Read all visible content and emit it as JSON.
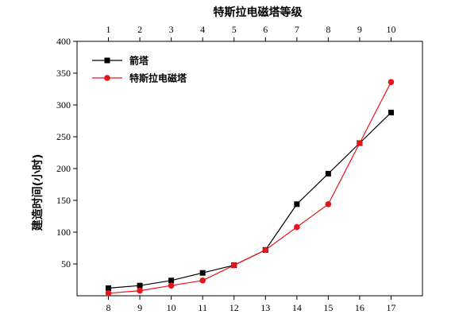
{
  "chart_data": {
    "type": "line",
    "title": "",
    "x_bottom": {
      "values": [
        8,
        9,
        10,
        11,
        12,
        13,
        14,
        15,
        16,
        17
      ],
      "range": [
        7,
        18
      ]
    },
    "x_top": {
      "label": "特斯拉电磁塔等级",
      "values": [
        1,
        2,
        3,
        4,
        5,
        6,
        7,
        8,
        9,
        10
      ]
    },
    "y": {
      "label": "建造时间(小时)",
      "range": [
        0,
        400
      ],
      "ticks": [
        50,
        100,
        150,
        200,
        250,
        300,
        350,
        400
      ]
    },
    "grid": false,
    "legend_position": "top-left",
    "series": [
      {
        "name": "箭塔",
        "color": "#000000",
        "marker": "square",
        "x": [
          8,
          9,
          10,
          11,
          12,
          13,
          14,
          15,
          16,
          17
        ],
        "y": [
          12,
          16,
          24,
          36,
          48,
          72,
          144,
          192,
          240,
          288
        ]
      },
      {
        "name": "特斯拉电磁塔",
        "color": "#e8141c",
        "marker": "circle",
        "x": [
          8,
          9,
          10,
          11,
          12,
          13,
          14,
          15,
          16,
          17
        ],
        "y": [
          4,
          8,
          16,
          24,
          48,
          72,
          108,
          144,
          240,
          336
        ]
      }
    ]
  }
}
